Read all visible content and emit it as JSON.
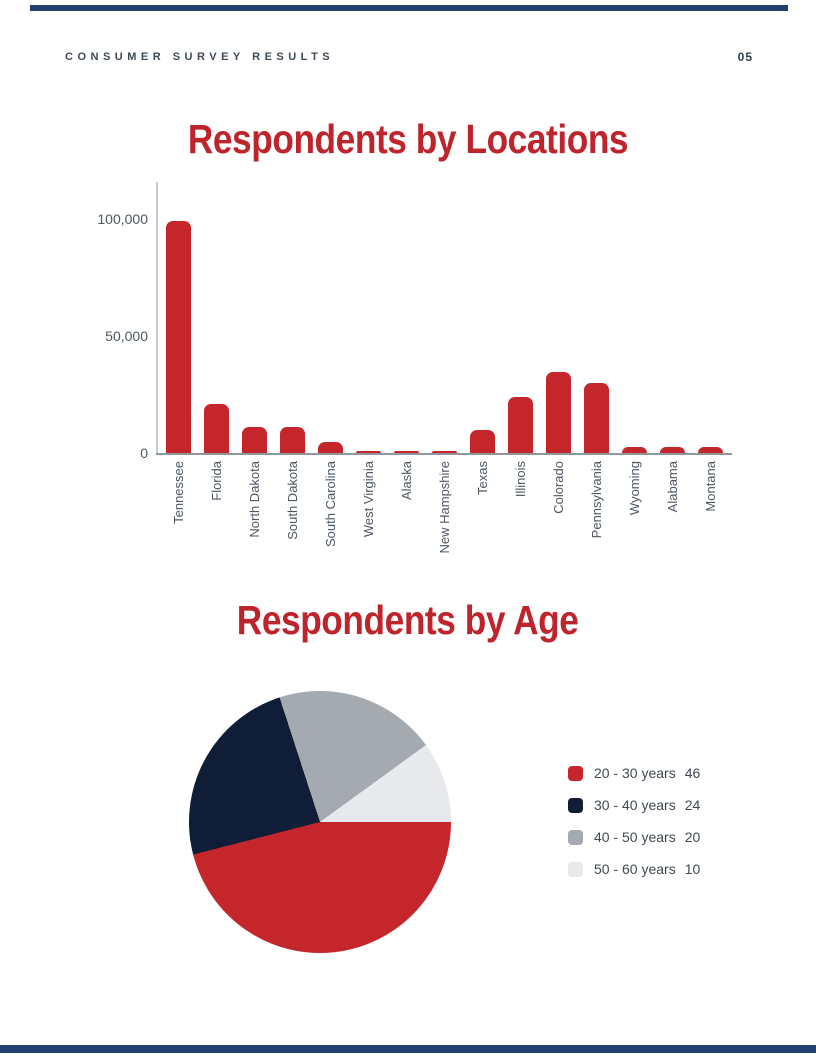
{
  "header": {
    "title": "CONSUMER SURVEY RESULTS",
    "page_number": "05"
  },
  "colors": {
    "accent_red": "#C5262C",
    "title_red": "#BE242C",
    "navy": "#101D36",
    "gray": "#A5AAB1",
    "light_gray": "#E7E9EC",
    "rule_blue": "#24406F",
    "axis_light": "#C6CACF",
    "axis_dark": "#8E969E",
    "label_slate": "#4D5762",
    "header_slate": "#3E4A59"
  },
  "chart_data": [
    {
      "type": "bar",
      "title": "Respondents by Locations",
      "categories": [
        "Tennessee",
        "Florida",
        "North Dakota",
        "South Dakota",
        "South Carolina",
        "West Virginia",
        "Alaska",
        "New Hampshire",
        "Texas",
        "Illinois",
        "Colorado",
        "Pennsylvania",
        "Wyoming",
        "Alabama",
        "Montana"
      ],
      "values": [
        99000,
        21000,
        11000,
        11000,
        4500,
        900,
        900,
        900,
        10000,
        24000,
        34500,
        30000,
        2600,
        2600,
        2600
      ],
      "bar_color": "#C5262C",
      "xlabel": "",
      "ylabel": "",
      "ylim": [
        0,
        116000
      ],
      "yticks": [
        0,
        50000,
        100000
      ],
      "ytick_labels": [
        "0",
        "50,000",
        "100,000"
      ],
      "grid": false,
      "legend_position": "none"
    },
    {
      "type": "pie",
      "title": "Respondents by Age",
      "slices": [
        {
          "label": "20 - 30 years",
          "value": 46,
          "color": "#C5262C"
        },
        {
          "label": "30 - 40 years",
          "value": 24,
          "color": "#101D36"
        },
        {
          "label": "40 - 50 years",
          "value": 20,
          "color": "#A5AAB1"
        },
        {
          "label": "50 - 60 years",
          "value": 10,
          "color": "#E7E9EC"
        }
      ],
      "start_angle_deg": 90,
      "direction": "clockwise",
      "legend_position": "right"
    }
  ]
}
